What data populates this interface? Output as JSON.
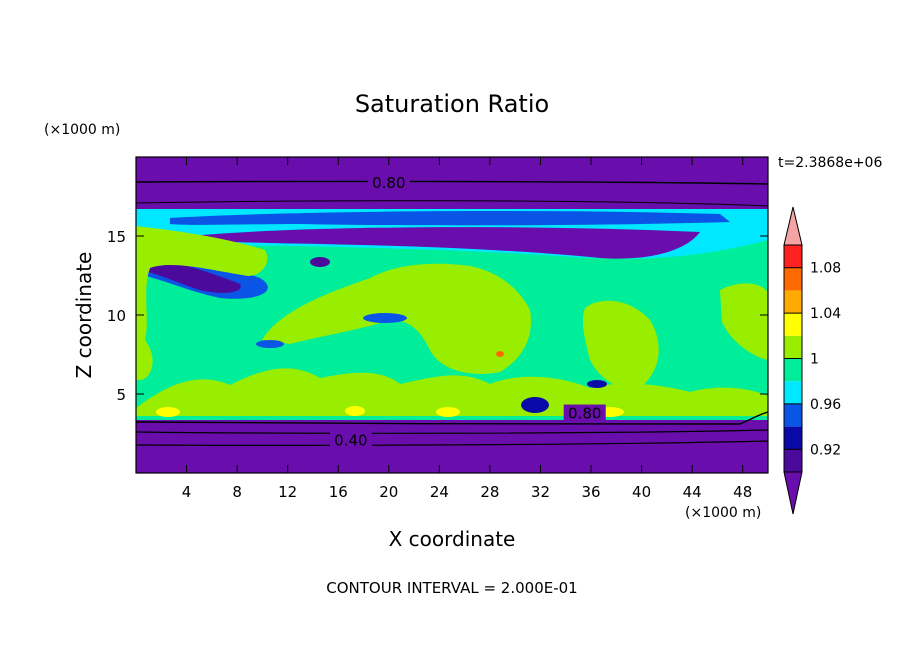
{
  "chart_data": {
    "type": "heatmap",
    "title": "Saturation Ratio",
    "xlabel": "X coordinate",
    "ylabel": "Z coordinate",
    "x_unit": "(×1000 m)",
    "y_unit": "(×1000 m)",
    "time_label": "t=2.3868e+06",
    "footer": "CONTOUR INTERVAL = 2.000E-01",
    "xlim": [
      0,
      50
    ],
    "ylim": [
      0,
      20
    ],
    "x_ticks": [
      4,
      8,
      12,
      16,
      20,
      24,
      28,
      32,
      36,
      40,
      44,
      48
    ],
    "y_ticks": [
      5,
      10,
      15
    ],
    "colorbar": {
      "labels": [
        "1.08",
        "1.04",
        "1",
        "0.96",
        "0.92"
      ],
      "bins": [
        {
          "min": null,
          "max": 0.9,
          "color": "#6a0dad"
        },
        {
          "min": 0.9,
          "max": 0.92,
          "color": "#4b0a9c"
        },
        {
          "min": 0.92,
          "max": 0.94,
          "color": "#0a0aa8"
        },
        {
          "min": 0.94,
          "max": 0.96,
          "color": "#0a55e6"
        },
        {
          "min": 0.96,
          "max": 0.98,
          "color": "#00e8ff"
        },
        {
          "min": 0.98,
          "max": 1.0,
          "color": "#00ee99"
        },
        {
          "min": 1.0,
          "max": 1.02,
          "color": "#99ee00"
        },
        {
          "min": 1.02,
          "max": 1.04,
          "color": "#ffff00"
        },
        {
          "min": 1.04,
          "max": 1.06,
          "color": "#ffaa00"
        },
        {
          "min": 1.06,
          "max": 1.08,
          "color": "#ff6a00"
        },
        {
          "min": 1.08,
          "max": 1.1,
          "color": "#ff2020"
        },
        {
          "min": 1.1,
          "max": null,
          "color": "#f4a4a4"
        }
      ]
    },
    "contour_labels": [
      {
        "text": "0.80",
        "x": 20.0,
        "y": 18.3
      },
      {
        "text": "0.80",
        "x": 35.5,
        "y": 3.7
      },
      {
        "text": "0.40",
        "x": 17.0,
        "y": 2.0
      }
    ],
    "regions": [
      {
        "name": "upper-dry-layer",
        "color": "#6a0dad",
        "x0": 0,
        "x1": 50,
        "y0": 17.5,
        "y1": 20
      },
      {
        "name": "lower-dry-layer",
        "color": "#6a0dad",
        "x0": 0,
        "x1": 50,
        "y0": 0,
        "y1": 3.3
      },
      {
        "name": "mid-layer",
        "color": "#00ee99",
        "x0": 0,
        "x1": 50,
        "y0": 3.3,
        "y1": 17.5
      }
    ]
  }
}
